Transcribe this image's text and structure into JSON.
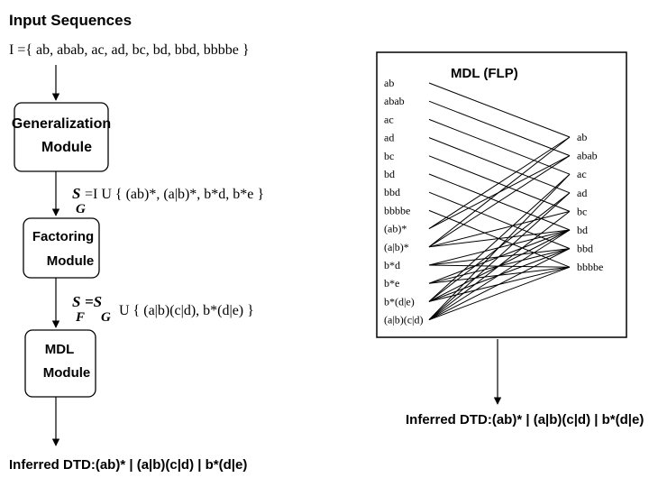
{
  "left": {
    "input_title": "Input Sequences",
    "input_set": "I ={  ab,  abab,  ac,  ad,  bc,  bd,  bbd,  bbbbe  }",
    "gen_module": [
      "Generalization",
      "Module"
    ],
    "sg_lhs_s": "S",
    "sg_lhs_sub": "G",
    "sg_rhs": "=I   U   { (ab)*,  (a|b)*,  b*d,  b*e }",
    "fact_module": [
      "Factoring",
      "Module"
    ],
    "sf_lhs_s": "S",
    "sf_lhs_sub": "F",
    "sf_mid_s": "=S",
    "sf_mid_sub": "G",
    "sf_rhs": "U   { (a|b)(c|d),  b*(d|e) }",
    "mdl_module": [
      "MDL",
      "Module"
    ],
    "inferred": "Inferred DTD:(ab)* | (a|b)(c|d) | b*(d|e)"
  },
  "right": {
    "box_title": "MDL (FLP)",
    "left_items": [
      "ab",
      "abab",
      "ac",
      "ad",
      "bc",
      "bd",
      "bbd",
      "bbbbe",
      "(ab)*",
      "(a|b)*",
      "b*d",
      "b*e",
      "b*(d|e)",
      "(a|b)(c|d)"
    ],
    "right_items": [
      "ab",
      "abab",
      "ac",
      "ad",
      "bc",
      "bd",
      "bbd",
      "bbbbe"
    ],
    "inferred": "Inferred DTD:(ab)* | (a|b)(c|d) | b*(d|e)"
  }
}
